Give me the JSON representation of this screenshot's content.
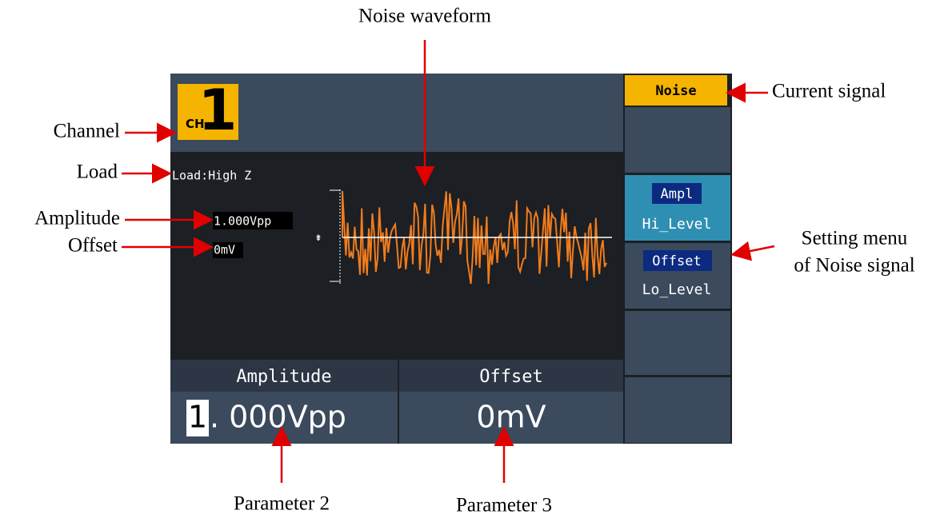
{
  "annotations": {
    "waveform": "Noise waveform",
    "channel": "Channel",
    "load": "Load",
    "amplitude": "Amplitude",
    "offset": "Offset",
    "current_signal": "Current signal",
    "setting_menu_1": "Setting menu",
    "setting_menu_2": "of Noise signal",
    "parameter_2": "Parameter 2",
    "parameter_3": "Parameter 3"
  },
  "screen": {
    "channel": {
      "prefix": "CH",
      "number": "1"
    },
    "load": "Load:High Z",
    "amplitude": "1.000Vpp",
    "offset": "0mV",
    "menu": {
      "title": "Noise",
      "items": [
        [
          "Ampl",
          "Hi_Level"
        ],
        [
          "Offset",
          "Lo_Level"
        ]
      ]
    },
    "params": [
      {
        "label": "Amplitude",
        "cursor_digit": "1",
        "value": ". 000Vpp"
      },
      {
        "label": "Offset",
        "value": "0mV"
      }
    ]
  }
}
